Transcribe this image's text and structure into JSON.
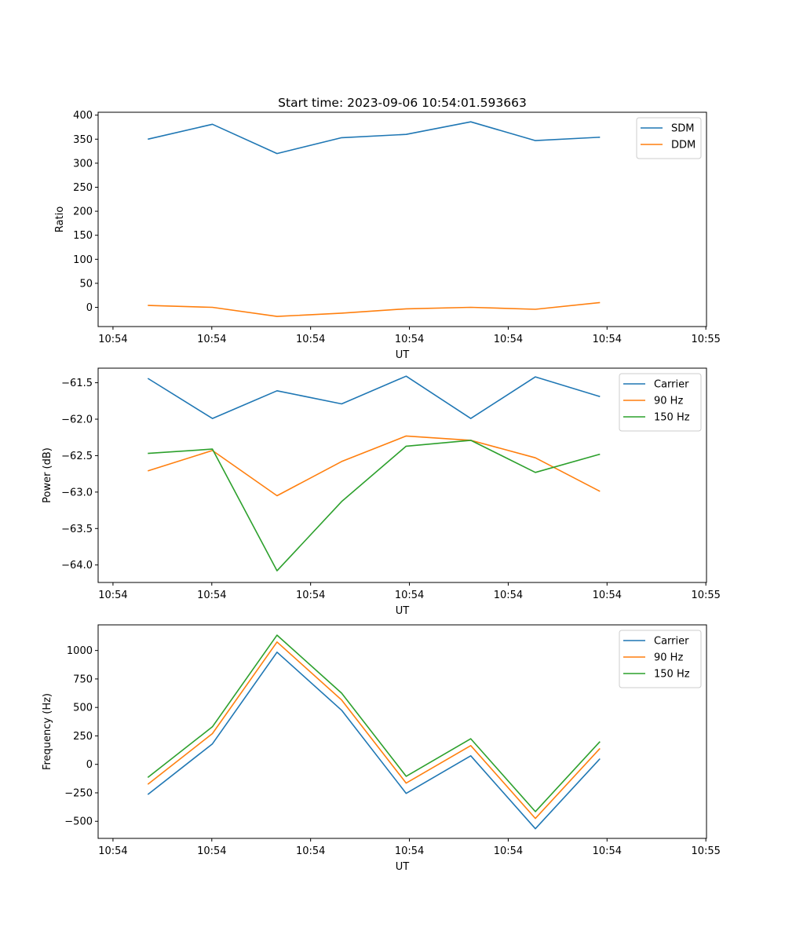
{
  "figure": {
    "title": "Start time: 2023-09-06 10:54:01.593663",
    "background": "#ffffff"
  },
  "colors": {
    "blue": "#1f77b4",
    "orange": "#ff7f0e",
    "green": "#2ca02c"
  },
  "chart_data": [
    {
      "type": "line",
      "title": "Start time: 2023-09-06 10:54:01.593663",
      "xlabel": "UT",
      "ylabel": "Ratio",
      "x": [
        1,
        2,
        3,
        4,
        5,
        6,
        7,
        8
      ],
      "xlim": [
        0.23,
        9.65
      ],
      "x_ticks": [
        0.46,
        1.99,
        3.52,
        5.05,
        6.58,
        8.11,
        9.64
      ],
      "x_tick_labels": [
        "10:54",
        "10:54",
        "10:54",
        "10:54",
        "10:54",
        "10:54",
        "10:55"
      ],
      "ylim": [
        -40,
        406
      ],
      "y_ticks": [
        0,
        50,
        100,
        150,
        200,
        250,
        300,
        350,
        400
      ],
      "y_tick_labels": [
        "0",
        "50",
        "100",
        "150",
        "200",
        "250",
        "300",
        "350",
        "400"
      ],
      "legend": "top-right",
      "series": [
        {
          "name": "SDM",
          "color": "#1f77b4",
          "values": [
            350,
            381,
            320,
            353,
            360,
            386,
            347,
            354
          ]
        },
        {
          "name": "DDM",
          "color": "#ff7f0e",
          "values": [
            4,
            0,
            -19,
            -12,
            -3,
            0,
            -4,
            10
          ]
        }
      ]
    },
    {
      "type": "line",
      "xlabel": "UT",
      "ylabel": "Power (dB)",
      "x": [
        1,
        2,
        3,
        4,
        5,
        6,
        7,
        8
      ],
      "xlim": [
        0.23,
        9.65
      ],
      "x_ticks": [
        0.46,
        1.99,
        3.52,
        5.05,
        6.58,
        8.11,
        9.64
      ],
      "x_tick_labels": [
        "10:54",
        "10:54",
        "10:54",
        "10:54",
        "10:54",
        "10:54",
        "10:55"
      ],
      "ylim": [
        -64.24,
        -61.3
      ],
      "y_ticks": [
        -64.0,
        -63.5,
        -63.0,
        -62.5,
        -62.0,
        -61.5
      ],
      "y_tick_labels": [
        "−64.0",
        "−63.5",
        "−63.0",
        "−62.5",
        "−62.0",
        "−61.5"
      ],
      "legend": "top-right",
      "series": [
        {
          "name": "Carrier",
          "color": "#1f77b4",
          "values": [
            -61.44,
            -61.99,
            -61.61,
            -61.79,
            -61.41,
            -61.99,
            -61.42,
            -61.69
          ]
        },
        {
          "name": "90 Hz",
          "color": "#ff7f0e",
          "values": [
            -62.71,
            -62.43,
            -63.05,
            -62.58,
            -62.23,
            -62.29,
            -62.53,
            -62.99
          ]
        },
        {
          "name": "150 Hz",
          "color": "#2ca02c",
          "values": [
            -62.47,
            -62.41,
            -64.08,
            -63.13,
            -62.37,
            -62.29,
            -62.73,
            -62.48
          ]
        }
      ]
    },
    {
      "type": "line",
      "xlabel": "UT",
      "ylabel": "Frequency (Hz)",
      "x": [
        1,
        2,
        3,
        4,
        5,
        6,
        7,
        8
      ],
      "xlim": [
        0.23,
        9.65
      ],
      "x_ticks": [
        0.46,
        1.99,
        3.52,
        5.05,
        6.58,
        8.11,
        9.64
      ],
      "x_tick_labels": [
        "10:54",
        "10:54",
        "10:54",
        "10:54",
        "10:54",
        "10:54",
        "10:55"
      ],
      "ylim": [
        -650,
        1225
      ],
      "y_ticks": [
        -500,
        -250,
        0,
        250,
        500,
        750,
        1000
      ],
      "y_tick_labels": [
        "−500",
        "−250",
        "0",
        "250",
        "500",
        "750",
        "1000"
      ],
      "legend": "top-right",
      "series": [
        {
          "name": "Carrier",
          "color": "#1f77b4",
          "values": [
            -265,
            180,
            985,
            475,
            -255,
            75,
            -565,
            50
          ]
        },
        {
          "name": "90 Hz",
          "color": "#ff7f0e",
          "values": [
            -175,
            270,
            1075,
            565,
            -165,
            165,
            -475,
            140
          ]
        },
        {
          "name": "150 Hz",
          "color": "#2ca02c",
          "values": [
            -115,
            330,
            1135,
            625,
            -105,
            225,
            -415,
            200
          ]
        }
      ]
    }
  ]
}
